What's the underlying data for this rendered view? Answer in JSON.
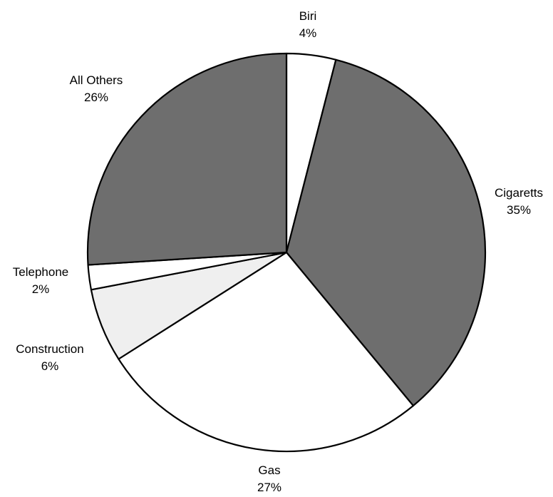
{
  "chart_data": {
    "type": "pie",
    "title": "",
    "slices": [
      {
        "label": "Biri",
        "value": 4,
        "value_label": "4%",
        "color": "#ffffff"
      },
      {
        "label": "Cigaretts",
        "value": 35,
        "value_label": "35%",
        "color": "#6e6e6e"
      },
      {
        "label": "Gas",
        "value": 27,
        "value_label": "27%",
        "color": "#ffffff"
      },
      {
        "label": "Construction",
        "value": 6,
        "value_label": "6%",
        "color": "#efefef"
      },
      {
        "label": "Telephone",
        "value": 2,
        "value_label": "2%",
        "color": "#ffffff"
      },
      {
        "label": "All Others",
        "value": 26,
        "value_label": "26%",
        "color": "#6e6e6e"
      }
    ],
    "start": "12 o'clock",
    "direction": "clockwise",
    "legend": "none"
  }
}
